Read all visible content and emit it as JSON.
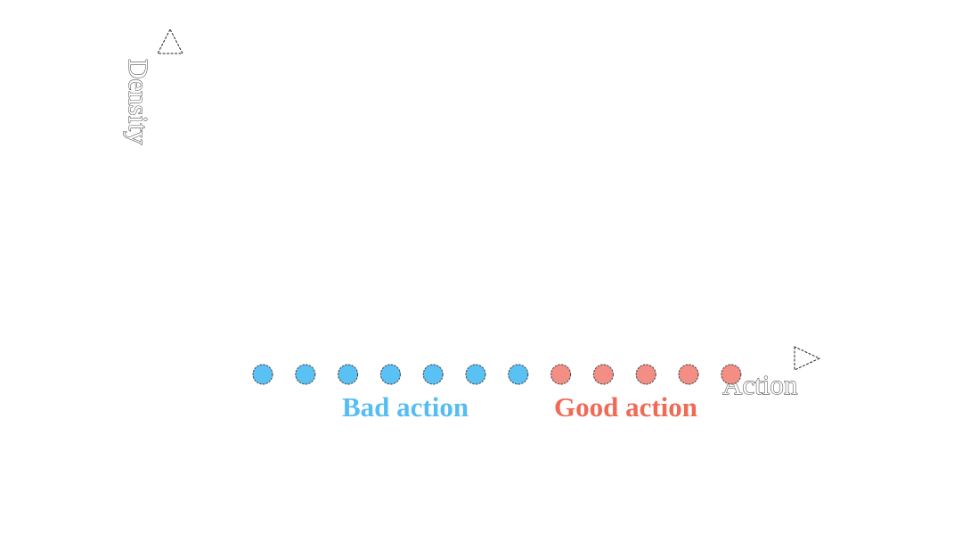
{
  "diagram": {
    "y_axis_label": "Density",
    "x_axis_label": "Action",
    "groups": [
      {
        "name": "bad",
        "label": "Bad action",
        "color": "#5ac1f5",
        "count": 7
      },
      {
        "name": "good",
        "label": "Good action",
        "color": "#f38e85",
        "count": 5
      }
    ],
    "label_colors": {
      "bad": "#56bdf3",
      "good": "#f06a55"
    }
  }
}
